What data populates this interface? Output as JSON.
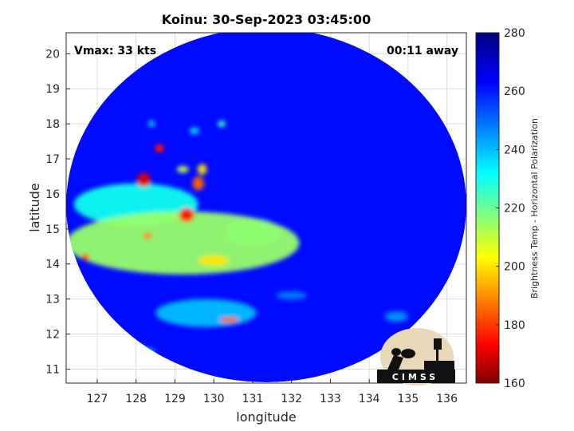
{
  "title": "Koinu: 30-Sep-2023 03:45:00",
  "annotations": {
    "vmax": "Vmax: 33 kts",
    "away": "00:11 away"
  },
  "axes": {
    "xlabel": "longitude",
    "ylabel": "latitude",
    "xlim": [
      126.2,
      136.5
    ],
    "ylim": [
      10.6,
      20.6
    ],
    "xticks": [
      127,
      128,
      129,
      130,
      131,
      132,
      133,
      134,
      135,
      136
    ],
    "yticks": [
      11,
      12,
      13,
      14,
      15,
      16,
      17,
      18,
      19,
      20
    ],
    "grid": true
  },
  "colorbar": {
    "label": "Brightness Temp - Horizontal Polarization",
    "range": [
      160,
      280
    ],
    "ticks": [
      160,
      180,
      200,
      220,
      240,
      260,
      280
    ],
    "colormap": [
      "#7f0000",
      "#ff0000",
      "#ffff00",
      "#00ffff",
      "#0000ff",
      "#00007f"
    ]
  },
  "logo": {
    "text": "CIMSS"
  },
  "chart_data": {
    "type": "heatmap",
    "title": "Koinu: 30-Sep-2023 03:45:00",
    "xlabel": "longitude",
    "ylabel": "latitude",
    "swath": {
      "center_lon": 131.3,
      "center_lat": 15.5,
      "radius_deg": 5.4
    },
    "background_temp": 262,
    "features": [
      {
        "lon": 129.2,
        "lat": 14.6,
        "temp": 215,
        "rlon": 3.0,
        "rlat": 0.9
      },
      {
        "lon": 128.0,
        "lat": 15.7,
        "temp": 230,
        "rlon": 1.6,
        "rlat": 0.6
      },
      {
        "lon": 129.8,
        "lat": 12.6,
        "temp": 240,
        "rlon": 1.3,
        "rlat": 0.4
      },
      {
        "lon": 129.3,
        "lat": 15.4,
        "temp": 175,
        "rlon": 0.2,
        "rlat": 0.2
      },
      {
        "lon": 128.2,
        "lat": 16.4,
        "temp": 170,
        "rlon": 0.18,
        "rlat": 0.2
      },
      {
        "lon": 128.6,
        "lat": 17.3,
        "temp": 175,
        "rlon": 0.12,
        "rlat": 0.12
      },
      {
        "lon": 129.6,
        "lat": 16.3,
        "temp": 185,
        "rlon": 0.15,
        "rlat": 0.2
      },
      {
        "lon": 126.7,
        "lat": 14.2,
        "temp": 180,
        "rlon": 0.1,
        "rlat": 0.1
      },
      {
        "lon": 128.3,
        "lat": 14.8,
        "temp": 185,
        "rlon": 0.12,
        "rlat": 0.08
      },
      {
        "lon": 130.0,
        "lat": 14.1,
        "temp": 200,
        "rlon": 0.4,
        "rlat": 0.15
      },
      {
        "lon": 130.4,
        "lat": 12.4,
        "temp": 185,
        "rlon": 0.25,
        "rlat": 0.08
      },
      {
        "lon": 129.7,
        "lat": 16.7,
        "temp": 200,
        "rlon": 0.12,
        "rlat": 0.15
      },
      {
        "lon": 129.2,
        "lat": 16.7,
        "temp": 210,
        "rlon": 0.15,
        "rlat": 0.1
      },
      {
        "lon": 128.4,
        "lat": 18.0,
        "temp": 240,
        "rlon": 0.1,
        "rlat": 0.1
      },
      {
        "lon": 129.5,
        "lat": 17.8,
        "temp": 235,
        "rlon": 0.12,
        "rlat": 0.1
      },
      {
        "lon": 130.2,
        "lat": 18.0,
        "temp": 225,
        "rlon": 0.1,
        "rlat": 0.1
      },
      {
        "lon": 132.0,
        "lat": 13.1,
        "temp": 248,
        "rlon": 0.4,
        "rlat": 0.12
      },
      {
        "lon": 131.0,
        "lat": 14.9,
        "temp": 235,
        "rlon": 0.7,
        "rlat": 0.4
      },
      {
        "lon": 128.0,
        "lat": 11.5,
        "temp": 243,
        "rlon": 0.5,
        "rlat": 0.15
      },
      {
        "lon": 134.7,
        "lat": 12.5,
        "temp": 245,
        "rlon": 0.3,
        "rlat": 0.15
      }
    ]
  }
}
